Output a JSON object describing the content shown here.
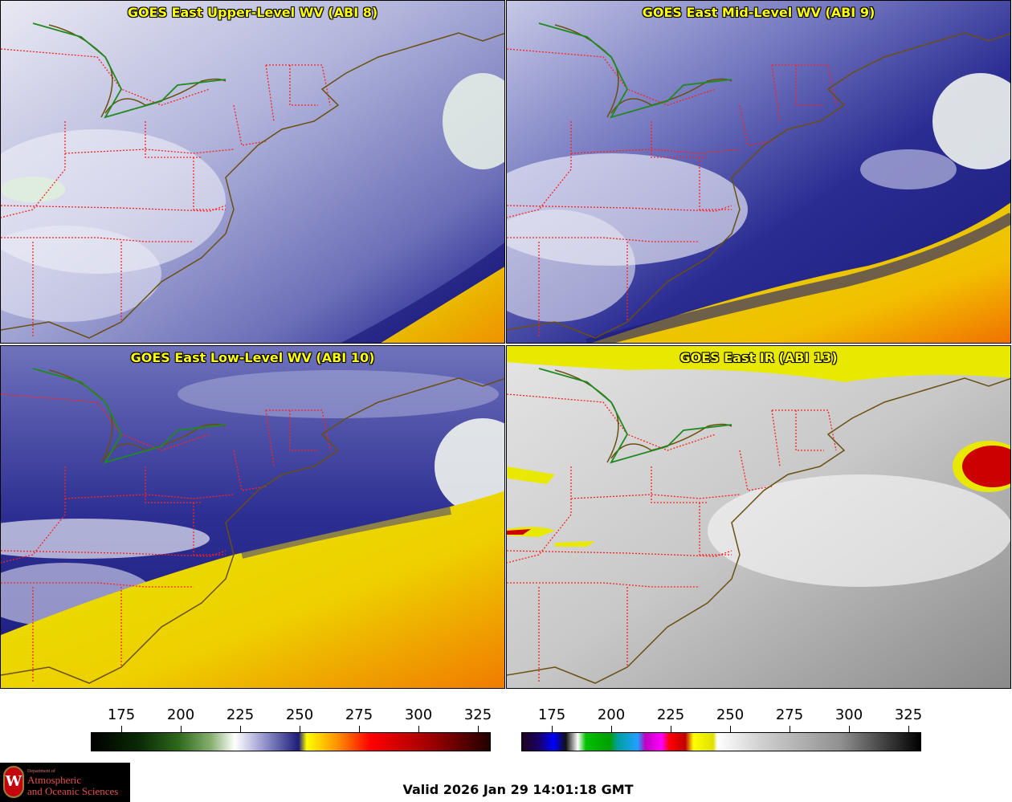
{
  "panels": [
    {
      "title": "GOES East Upper-Level WV (ABI 8)",
      "type": "wv"
    },
    {
      "title": "GOES East Mid-Level WV (ABI 9)",
      "type": "wv"
    },
    {
      "title": "GOES East Low-Level WV (ABI 10)",
      "type": "wv"
    },
    {
      "title": "GOES East IR (ABI 13)",
      "type": "ir"
    }
  ],
  "colorbars": {
    "wv": {
      "ticks": [
        "175",
        "200",
        "225",
        "250",
        "275",
        "300",
        "325"
      ]
    },
    "ir": {
      "ticks": [
        "175",
        "200",
        "225",
        "250",
        "275",
        "300",
        "325"
      ]
    }
  },
  "logo": {
    "dept": "Department of",
    "line1": "Atmospheric",
    "line2": "and Oceanic Sciences",
    "seal_letter": "W"
  },
  "footer": {
    "valid": "Valid 2026 Jan 29 14:01:18 GMT"
  }
}
